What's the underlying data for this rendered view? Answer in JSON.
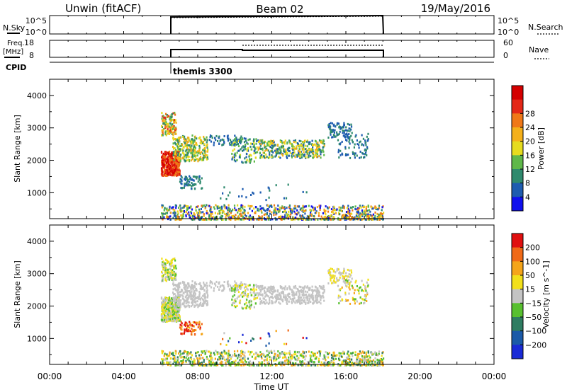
{
  "header": {
    "station": "Unwin (fitACF)",
    "beam": "Beam 02",
    "date": "19/May/2016"
  },
  "panels": {
    "nsky": {
      "left_label": "N.Sky",
      "left_ticks": [
        "10^5",
        "10^0"
      ],
      "right_ticks": [
        "10^5",
        "10^0"
      ],
      "right_label": "N.Search"
    },
    "freq": {
      "left_label": "Freq.",
      "left_unit": "[MHz]",
      "left_ticks": [
        "18",
        "8"
      ],
      "right_ticks": [
        "60",
        "0"
      ],
      "right_label": "Nave"
    },
    "cpid": {
      "label": "CPID",
      "program": "themis 3300"
    }
  },
  "chart_data": [
    {
      "type": "heatmap",
      "ylabel": "Slant Range [km]",
      "y_ticks": [
        "1000",
        "2000",
        "3000",
        "4000"
      ],
      "ylim": [
        200,
        4500
      ],
      "colorbar": {
        "label": "Power [dB]",
        "ticks": [
          "4",
          "8",
          "12",
          "16",
          "20",
          "24",
          "28"
        ],
        "colors": [
          "#1010ee",
          "#1e5cb0",
          "#2f8a6e",
          "#5fb84a",
          "#e6dc1e",
          "#f5b01a",
          "#f07818",
          "#e42818",
          "#d40000"
        ]
      }
    },
    {
      "type": "heatmap",
      "ylabel": "Slant Range [km]",
      "y_ticks": [
        "1000",
        "2000",
        "3000",
        "4000"
      ],
      "ylim": [
        200,
        4500
      ],
      "colorbar": {
        "label": "Velocity [m s^-1]",
        "ticks": [
          "200",
          "100",
          "50",
          "15",
          "−15",
          "−50",
          "−100",
          "−200"
        ],
        "colors": [
          "#1a2ad6",
          "#1b5aa8",
          "#2f7d62",
          "#58c030",
          "#c4c4c4",
          "#f2e01a",
          "#f5a51a",
          "#f06a18",
          "#e01010"
        ]
      }
    }
  ],
  "time_axis": {
    "label": "Time UT",
    "ticks": [
      "00:00",
      "04:00",
      "08:00",
      "12:00",
      "16:00",
      "20:00",
      "00:00"
    ]
  }
}
